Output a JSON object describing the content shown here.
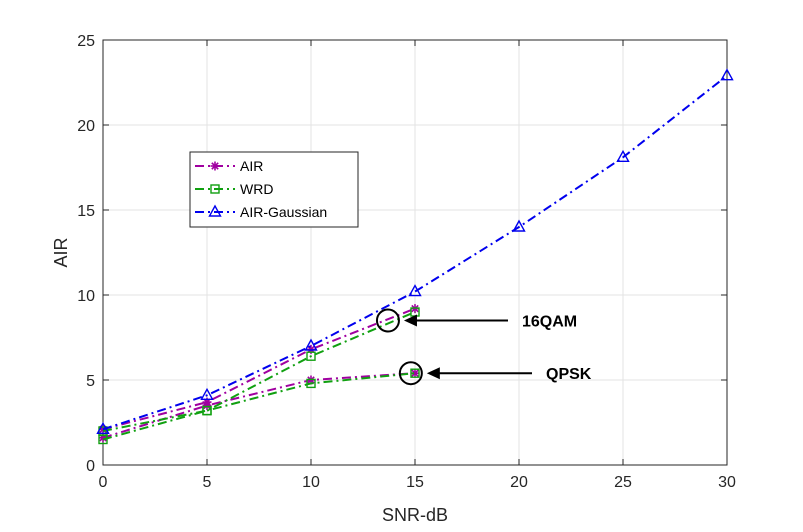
{
  "chart_data": {
    "type": "line",
    "xlabel": "SNR-dB",
    "ylabel": "AIR",
    "xlim": [
      0,
      30
    ],
    "ylim": [
      0,
      25
    ],
    "x_ticks": [
      0,
      5,
      10,
      15,
      20,
      25,
      30
    ],
    "y_ticks": [
      0,
      5,
      10,
      15,
      20,
      25
    ],
    "grid": true,
    "legend_position": "upper-left",
    "series": [
      {
        "name": "AIR",
        "color": "#a000a0",
        "marker": "asterisk",
        "line_style": "dash-dot",
        "x": [
          0,
          5,
          10,
          15
        ],
        "y": [
          2.1,
          3.7,
          6.8,
          9.2
        ]
      },
      {
        "name": "AIR",
        "color": "#a000a0",
        "marker": "asterisk",
        "line_style": "dash-dot",
        "x": [
          0,
          5,
          10,
          15
        ],
        "y": [
          1.6,
          3.5,
          5.0,
          5.4
        ]
      },
      {
        "name": "WRD",
        "color": "#10a010",
        "marker": "square",
        "line_style": "dash-dot",
        "x": [
          0,
          5,
          10,
          15
        ],
        "y": [
          2.0,
          3.2,
          6.4,
          9.0
        ]
      },
      {
        "name": "WRD",
        "color": "#10a010",
        "marker": "square",
        "line_style": "dash-dot",
        "x": [
          0,
          5,
          10,
          15
        ],
        "y": [
          1.5,
          3.2,
          4.8,
          5.4
        ]
      },
      {
        "name": "AIR-Gaussian",
        "color": "#0000ee",
        "marker": "triangle",
        "line_style": "dash-dot",
        "x": [
          0,
          5,
          10,
          15,
          20,
          25,
          30
        ],
        "y": [
          2.1,
          4.1,
          7.0,
          10.2,
          14.0,
          18.1,
          22.9
        ]
      }
    ],
    "legend_entries": [
      "AIR",
      "WRD",
      "AIR-Gaussian"
    ],
    "annotations": [
      {
        "text": "16QAM",
        "circle_at": {
          "x": 13.7,
          "y": 8.5
        },
        "arrow": "left"
      },
      {
        "text": "QPSK",
        "circle_at": {
          "x": 14.8,
          "y": 5.4
        },
        "arrow": "left"
      }
    ]
  }
}
